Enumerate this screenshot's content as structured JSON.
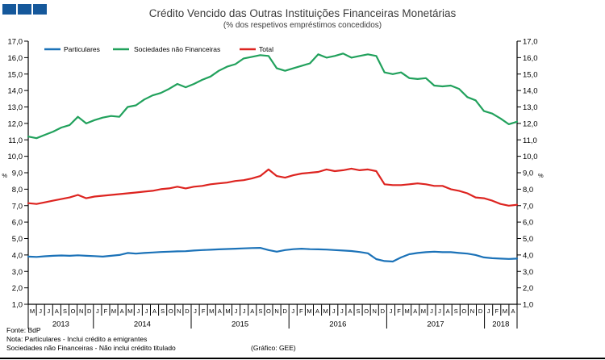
{
  "header": {
    "title": "Crédito Vencido das Outras Instituições Financeiras Monetárias",
    "subtitle": "(% dos respetivos empréstimos concedidos)",
    "logo_color": "#15589b"
  },
  "footer": {
    "fonte": "Fonte: BdP",
    "nota1": "Nota: Particulares - Inclui crédito a emigrantes",
    "nota2": "Sociedades não Financeiras - Não inclui crédito titulado",
    "grafico": "(Gráfico: GEE)"
  },
  "chart_data": {
    "type": "line",
    "title": "Crédito Vencido das Outras Instituições Financeiras Monetárias",
    "subtitle": "(% dos respetivos empréstimos concedidos)",
    "ylabel": "%",
    "ylim": [
      1.0,
      17.0
    ],
    "ytick_step": 1.0,
    "ytick_labels": [
      "1,0",
      "2,0",
      "3,0",
      "4,0",
      "5,0",
      "6,0",
      "7,0",
      "8,0",
      "9,0",
      "10,0",
      "11,0",
      "12,0",
      "13,0",
      "14,0",
      "15,0",
      "16,0",
      "17,0"
    ],
    "grid": false,
    "legend_position": "top-left-inside",
    "month_labels": [
      "M",
      "J",
      "J",
      "A",
      "S",
      "O",
      "N",
      "D",
      "J",
      "F",
      "M",
      "A",
      "M",
      "J",
      "J",
      "A",
      "S",
      "O",
      "N",
      "D",
      "J",
      "F",
      "M",
      "A",
      "M",
      "J",
      "J",
      "A",
      "S",
      "O",
      "N",
      "D",
      "J",
      "F",
      "M",
      "A",
      "M",
      "J",
      "J",
      "A",
      "S",
      "O",
      "N",
      "D",
      "J",
      "F",
      "M",
      "A",
      "M",
      "J",
      "J",
      "A",
      "S",
      "O",
      "N",
      "D",
      "J",
      "F",
      "M",
      "A"
    ],
    "years": [
      {
        "label": "2013",
        "months": 8
      },
      {
        "label": "2014",
        "months": 12
      },
      {
        "label": "2015",
        "months": 12
      },
      {
        "label": "2016",
        "months": 12
      },
      {
        "label": "2017",
        "months": 12
      },
      {
        "label": "2018",
        "months": 4
      }
    ],
    "series": [
      {
        "name": "Particulares",
        "key": "particulares",
        "color": "#1b72b8",
        "values": [
          3.9,
          3.88,
          3.92,
          3.95,
          3.97,
          3.95,
          3.98,
          3.95,
          3.93,
          3.9,
          3.95,
          4.0,
          4.12,
          4.08,
          4.12,
          4.15,
          4.18,
          4.2,
          4.22,
          4.23,
          4.27,
          4.3,
          4.32,
          4.34,
          4.36,
          4.38,
          4.4,
          4.42,
          4.43,
          4.3,
          4.2,
          4.3,
          4.35,
          4.38,
          4.35,
          4.34,
          4.33,
          4.3,
          4.27,
          4.24,
          4.18,
          4.1,
          3.75,
          3.63,
          3.6,
          3.85,
          4.05,
          4.12,
          4.17,
          4.2,
          4.17,
          4.17,
          4.12,
          4.08,
          4.0,
          3.85,
          3.8,
          3.78,
          3.76,
          3.78
        ]
      },
      {
        "name": "Sociedades não Financeiras",
        "key": "sociedades-nao-financeiras",
        "color": "#21a15c",
        "values": [
          11.2,
          11.1,
          11.3,
          11.5,
          11.75,
          11.9,
          12.4,
          12.0,
          12.2,
          12.35,
          12.45,
          12.4,
          13.0,
          13.1,
          13.45,
          13.7,
          13.85,
          14.1,
          14.4,
          14.2,
          14.4,
          14.65,
          14.85,
          15.2,
          15.45,
          15.6,
          15.95,
          16.05,
          16.15,
          16.1,
          15.35,
          15.2,
          15.35,
          15.5,
          15.65,
          16.2,
          16.0,
          16.1,
          16.25,
          16.0,
          16.1,
          16.2,
          16.1,
          15.1,
          15.0,
          15.1,
          14.75,
          14.7,
          14.75,
          14.3,
          14.25,
          14.3,
          14.1,
          13.6,
          13.4,
          12.75,
          12.6,
          12.3,
          11.95,
          12.1
        ]
      },
      {
        "name": "Total",
        "key": "total",
        "color": "#dd2420",
        "values": [
          7.15,
          7.1,
          7.2,
          7.3,
          7.4,
          7.5,
          7.65,
          7.45,
          7.55,
          7.6,
          7.65,
          7.7,
          7.75,
          7.8,
          7.85,
          7.9,
          8.0,
          8.05,
          8.15,
          8.05,
          8.15,
          8.2,
          8.3,
          8.35,
          8.4,
          8.5,
          8.55,
          8.65,
          8.8,
          9.2,
          8.8,
          8.7,
          8.85,
          8.95,
          9.0,
          9.05,
          9.2,
          9.1,
          9.15,
          9.25,
          9.15,
          9.2,
          9.1,
          8.3,
          8.25,
          8.25,
          8.3,
          8.35,
          8.3,
          8.2,
          8.2,
          8.0,
          7.9,
          7.75,
          7.5,
          7.45,
          7.3,
          7.1,
          7.0,
          7.05
        ]
      }
    ]
  }
}
